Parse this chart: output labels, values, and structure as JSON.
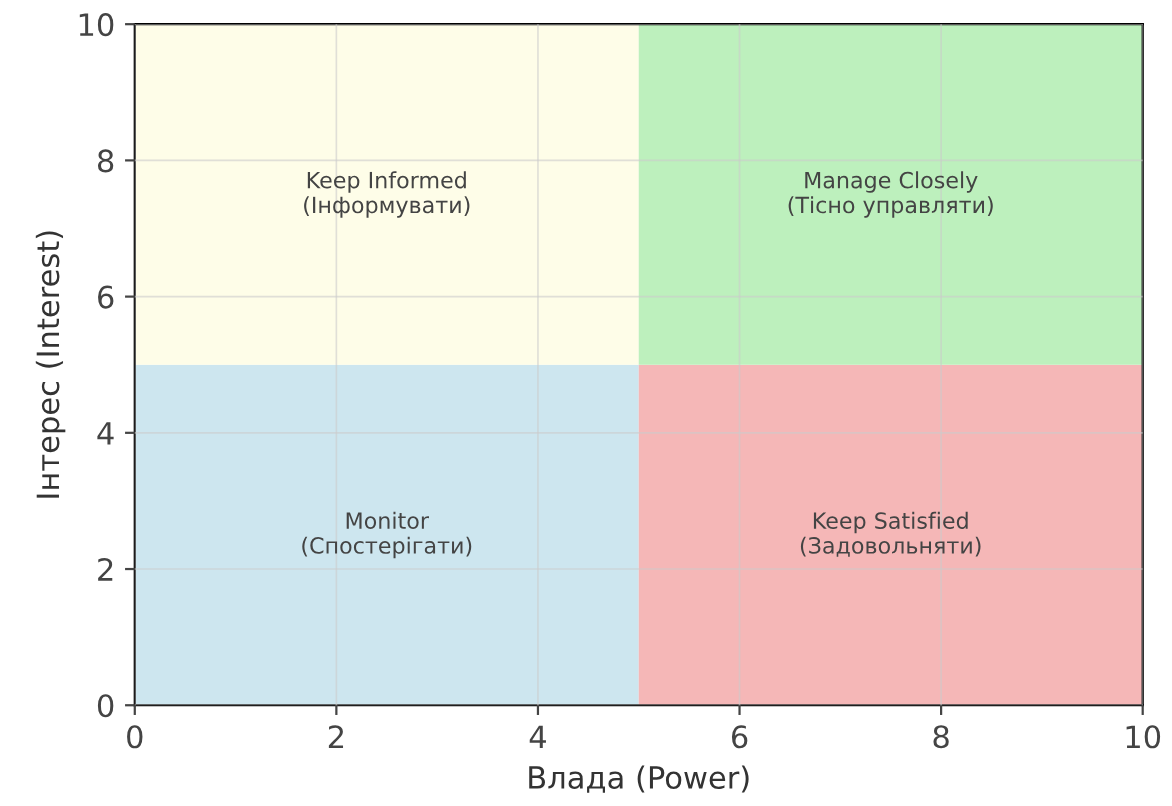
{
  "chart_data": {
    "type": "bar",
    "stacked": true,
    "x": [
      2.5,
      7.5
    ],
    "series": [
      {
        "colors": [
          "#cde6ef",
          "#f5b7b7"
        ],
        "values": [
          5,
          5
        ]
      },
      {
        "colors": [
          "#fefde8",
          "#bdf0bd"
        ],
        "values": [
          5,
          5
        ]
      }
    ],
    "xlim": [
      0,
      10
    ],
    "ylim": [
      0,
      10
    ],
    "xticks": [
      0,
      2,
      4,
      6,
      8,
      10
    ],
    "yticks": [
      0,
      2,
      4,
      6,
      8,
      10
    ],
    "xlabel": "Влада (Power)",
    "ylabel": "Інтерес (Interest)",
    "grid": true,
    "annotations": [
      "Keep Informed\n(Інформувати)",
      "Manage Closely\n(Тісно управляти)",
      "Monitor\n(Спостерігати)",
      "Keep Satisfied\n(Задовольняти)"
    ]
  }
}
